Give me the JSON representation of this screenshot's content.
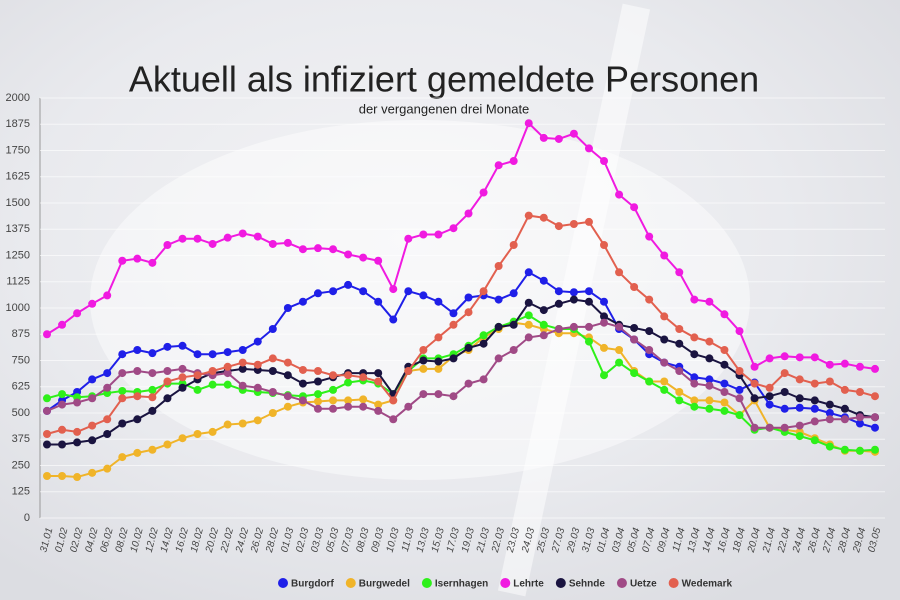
{
  "chart_data": {
    "type": "line",
    "title": "Aktuell als infiziert gemeldete Personen",
    "subtitle": "der vergangenen drei Monate",
    "categories": [
      "31.01",
      "01.02",
      "02.02",
      "04.02",
      "06.02",
      "08.02",
      "10.02",
      "12.02",
      "14.02",
      "16.02",
      "18.02",
      "20.02",
      "22.02",
      "24.02",
      "26.02",
      "28.02",
      "01.03",
      "02.03",
      "03.03",
      "05.03",
      "07.03",
      "08.03",
      "09.03",
      "10.03",
      "11.03",
      "13.03",
      "15.03",
      "17.03",
      "19.03",
      "21.03",
      "22.03",
      "23.03",
      "24.03",
      "25.03",
      "27.03",
      "29.03",
      "31.03",
      "01.04",
      "03.04",
      "05.04",
      "07.04",
      "09.04",
      "11.04",
      "13.04",
      "14.04",
      "16.04",
      "18.04",
      "20.04",
      "21.04",
      "22.04",
      "24.04",
      "26.04",
      "27.04",
      "28.04",
      "29.04",
      "03.05"
    ],
    "series": [
      {
        "name": "Burgdorf",
        "color": "#1f1fe8",
        "values": [
          510,
          560,
          600,
          660,
          690,
          780,
          800,
          785,
          815,
          820,
          780,
          780,
          790,
          800,
          840,
          900,
          1000,
          1030,
          1070,
          1080,
          1110,
          1080,
          1030,
          945,
          1080,
          1060,
          1030,
          975,
          1050,
          1060,
          1040,
          1070,
          1170,
          1130,
          1080,
          1075,
          1080,
          1030,
          900,
          850,
          780,
          740,
          720,
          670,
          660,
          640,
          610,
          645,
          540,
          520,
          525,
          520,
          500,
          480,
          450,
          430
        ]
      },
      {
        "name": "Burgwedel",
        "color": "#f0b429",
        "values": [
          200,
          200,
          195,
          215,
          235,
          290,
          310,
          325,
          350,
          380,
          400,
          410,
          445,
          450,
          465,
          500,
          530,
          550,
          555,
          560,
          560,
          565,
          540,
          560,
          700,
          710,
          710,
          770,
          800,
          860,
          900,
          930,
          920,
          900,
          880,
          880,
          860,
          810,
          800,
          700,
          650,
          650,
          600,
          560,
          560,
          550,
          490,
          560,
          430,
          420,
          410,
          380,
          350,
          320,
          320,
          315
        ]
      },
      {
        "name": "Isernhagen",
        "color": "#2ef01a",
        "values": [
          570,
          590,
          575,
          580,
          595,
          605,
          600,
          610,
          640,
          640,
          610,
          635,
          635,
          610,
          600,
          595,
          585,
          580,
          590,
          610,
          645,
          655,
          640,
          590,
          700,
          760,
          760,
          780,
          820,
          870,
          910,
          935,
          965,
          920,
          900,
          900,
          840,
          680,
          740,
          690,
          650,
          610,
          560,
          530,
          520,
          510,
          490,
          420,
          430,
          410,
          390,
          370,
          340,
          325,
          320,
          325
        ]
      },
      {
        "name": "Lehrte",
        "color": "#f01ae0",
        "values": [
          875,
          920,
          975,
          1020,
          1060,
          1225,
          1235,
          1215,
          1300,
          1330,
          1330,
          1305,
          1335,
          1355,
          1340,
          1305,
          1310,
          1280,
          1285,
          1280,
          1255,
          1240,
          1225,
          1090,
          1330,
          1350,
          1350,
          1380,
          1450,
          1550,
          1680,
          1700,
          1880,
          1810,
          1805,
          1830,
          1760,
          1700,
          1540,
          1480,
          1340,
          1250,
          1170,
          1040,
          1030,
          970,
          890,
          720,
          760,
          770,
          765,
          765,
          730,
          735,
          720,
          710
        ]
      },
      {
        "name": "Sehnde",
        "color": "#1a1440",
        "values": [
          350,
          350,
          360,
          370,
          400,
          450,
          470,
          510,
          570,
          620,
          660,
          690,
          700,
          710,
          705,
          700,
          680,
          640,
          650,
          670,
          690,
          690,
          690,
          590,
          720,
          750,
          745,
          760,
          810,
          830,
          910,
          920,
          1025,
          990,
          1020,
          1040,
          1030,
          960,
          920,
          905,
          890,
          850,
          830,
          780,
          760,
          730,
          680,
          570,
          580,
          600,
          570,
          560,
          540,
          520,
          490,
          480
        ]
      },
      {
        "name": "Uetze",
        "color": "#a04a86",
        "values": [
          510,
          540,
          550,
          570,
          620,
          690,
          700,
          690,
          700,
          710,
          690,
          680,
          690,
          630,
          620,
          600,
          580,
          560,
          520,
          520,
          530,
          530,
          510,
          470,
          530,
          590,
          590,
          580,
          640,
          660,
          760,
          800,
          860,
          870,
          900,
          910,
          910,
          930,
          910,
          850,
          800,
          740,
          700,
          640,
          630,
          600,
          570,
          430,
          430,
          430,
          440,
          460,
          470,
          470,
          480,
          480
        ]
      },
      {
        "name": "Wedemark",
        "color": "#e2604f",
        "values": [
          400,
          420,
          410,
          440,
          470,
          570,
          580,
          575,
          650,
          670,
          680,
          700,
          720,
          740,
          730,
          760,
          740,
          705,
          700,
          680,
          680,
          670,
          650,
          560,
          700,
          800,
          860,
          920,
          980,
          1080,
          1200,
          1300,
          1440,
          1430,
          1390,
          1400,
          1410,
          1300,
          1170,
          1100,
          1040,
          960,
          900,
          860,
          840,
          800,
          700,
          640,
          620,
          690,
          660,
          640,
          650,
          610,
          600,
          580
        ]
      }
    ],
    "ylim": [
      0,
      2000
    ],
    "yticks": [
      0,
      125,
      250,
      375,
      500,
      625,
      750,
      875,
      1000,
      1125,
      1250,
      1375,
      1500,
      1625,
      1750,
      1875,
      2000
    ],
    "grid": true
  }
}
